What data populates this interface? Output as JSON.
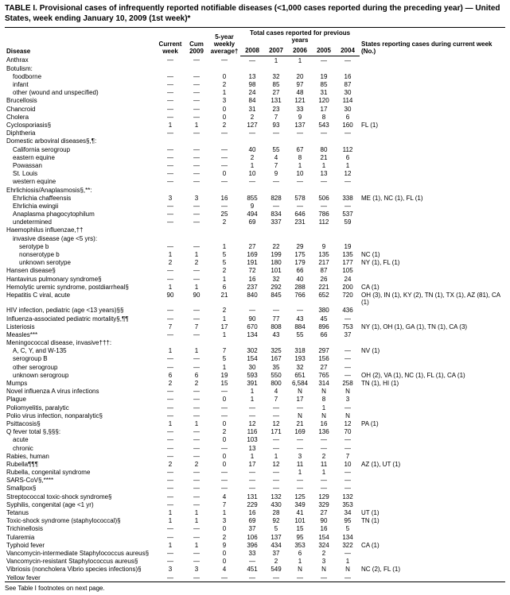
{
  "title": "TABLE I. Provisional cases of infrequently reported notifiable diseases (<1,000 cases reported during the preceding year) — United States, week ending January 10, 2009 (1st week)*",
  "header": {
    "disease": "Disease",
    "current_week": "Current week",
    "cum_2009": "Cum 2009",
    "five_year_avg": "5-year weekly average†",
    "total_cases_label": "Total cases reported for previous years",
    "years": [
      "2008",
      "2007",
      "2006",
      "2005",
      "2004"
    ],
    "states_label": "States reporting cases during current week (No.)"
  },
  "columns_styling": {
    "font_family": "Arial",
    "header_fontsize_pt": 7,
    "body_fontsize_pt": 7,
    "rule_color": "#000000",
    "background": "#ffffff"
  },
  "rows": [
    {
      "d": "Anthrax",
      "i": 0,
      "v": [
        "—",
        "—",
        "—",
        "—",
        "1",
        "1",
        "—",
        "—"
      ],
      "s": ""
    },
    {
      "d": "Botulism:",
      "i": 0,
      "v": [
        "",
        "",
        "",
        "",
        "",
        "",
        "",
        ""
      ],
      "s": ""
    },
    {
      "d": "foodborne",
      "i": 1,
      "v": [
        "—",
        "—",
        "0",
        "13",
        "32",
        "20",
        "19",
        "16"
      ],
      "s": ""
    },
    {
      "d": "infant",
      "i": 1,
      "v": [
        "—",
        "—",
        "2",
        "98",
        "85",
        "97",
        "85",
        "87"
      ],
      "s": ""
    },
    {
      "d": "other (wound and unspecified)",
      "i": 1,
      "v": [
        "—",
        "—",
        "1",
        "24",
        "27",
        "48",
        "31",
        "30"
      ],
      "s": ""
    },
    {
      "d": "Brucellosis",
      "i": 0,
      "v": [
        "—",
        "—",
        "3",
        "84",
        "131",
        "121",
        "120",
        "114"
      ],
      "s": ""
    },
    {
      "d": "Chancroid",
      "i": 0,
      "v": [
        "—",
        "—",
        "0",
        "31",
        "23",
        "33",
        "17",
        "30"
      ],
      "s": ""
    },
    {
      "d": "Cholera",
      "i": 0,
      "v": [
        "—",
        "—",
        "0",
        "2",
        "7",
        "9",
        "8",
        "6"
      ],
      "s": ""
    },
    {
      "d": "Cyclosporiasis§",
      "i": 0,
      "v": [
        "1",
        "1",
        "2",
        "127",
        "93",
        "137",
        "543",
        "160"
      ],
      "s": "FL (1)"
    },
    {
      "d": "Diphtheria",
      "i": 0,
      "v": [
        "—",
        "—",
        "—",
        "—",
        "—",
        "—",
        "—",
        "—"
      ],
      "s": ""
    },
    {
      "d": "Domestic arboviral diseases§,¶:",
      "i": 0,
      "v": [
        "",
        "",
        "",
        "",
        "",
        "",
        "",
        ""
      ],
      "s": ""
    },
    {
      "d": "California serogroup",
      "i": 1,
      "v": [
        "—",
        "—",
        "—",
        "40",
        "55",
        "67",
        "80",
        "112"
      ],
      "s": ""
    },
    {
      "d": "eastern equine",
      "i": 1,
      "v": [
        "—",
        "—",
        "—",
        "2",
        "4",
        "8",
        "21",
        "6"
      ],
      "s": ""
    },
    {
      "d": "Powassan",
      "i": 1,
      "v": [
        "—",
        "—",
        "—",
        "1",
        "7",
        "1",
        "1",
        "1"
      ],
      "s": ""
    },
    {
      "d": "St. Louis",
      "i": 1,
      "v": [
        "—",
        "—",
        "0",
        "10",
        "9",
        "10",
        "13",
        "12"
      ],
      "s": ""
    },
    {
      "d": "western equine",
      "i": 1,
      "v": [
        "—",
        "—",
        "—",
        "—",
        "—",
        "—",
        "—",
        "—"
      ],
      "s": ""
    },
    {
      "d": "Ehrlichiosis/Anaplasmosis§,**:",
      "i": 0,
      "v": [
        "",
        "",
        "",
        "",
        "",
        "",
        "",
        ""
      ],
      "s": ""
    },
    {
      "d": "Ehrlichia chaffeensis",
      "i": 1,
      "v": [
        "3",
        "3",
        "16",
        "855",
        "828",
        "578",
        "506",
        "338"
      ],
      "s": "ME (1), NC (1), FL (1)"
    },
    {
      "d": "Ehrlichia ewingii",
      "i": 1,
      "v": [
        "—",
        "—",
        "—",
        "9",
        "—",
        "—",
        "—",
        "—"
      ],
      "s": ""
    },
    {
      "d": "Anaplasma phagocytophilum",
      "i": 1,
      "v": [
        "—",
        "—",
        "25",
        "494",
        "834",
        "646",
        "786",
        "537"
      ],
      "s": ""
    },
    {
      "d": "undetermined",
      "i": 1,
      "v": [
        "—",
        "—",
        "2",
        "69",
        "337",
        "231",
        "112",
        "59"
      ],
      "s": ""
    },
    {
      "d": "Haemophilus influenzae,††",
      "i": 0,
      "v": [
        "",
        "",
        "",
        "",
        "",
        "",
        "",
        ""
      ],
      "s": ""
    },
    {
      "d": "invasive disease (age <5 yrs):",
      "i": 1,
      "v": [
        "",
        "",
        "",
        "",
        "",
        "",
        "",
        ""
      ],
      "s": ""
    },
    {
      "d": "serotype b",
      "i": 2,
      "v": [
        "—",
        "—",
        "1",
        "27",
        "22",
        "29",
        "9",
        "19"
      ],
      "s": ""
    },
    {
      "d": "nonserotype b",
      "i": 2,
      "v": [
        "1",
        "1",
        "5",
        "169",
        "199",
        "175",
        "135",
        "135"
      ],
      "s": "NC (1)"
    },
    {
      "d": "unknown serotype",
      "i": 2,
      "v": [
        "2",
        "2",
        "5",
        "191",
        "180",
        "179",
        "217",
        "177"
      ],
      "s": "NY (1), FL (1)"
    },
    {
      "d": "Hansen disease§",
      "i": 0,
      "v": [
        "—",
        "—",
        "2",
        "72",
        "101",
        "66",
        "87",
        "105"
      ],
      "s": ""
    },
    {
      "d": "Hantavirus pulmonary syndrome§",
      "i": 0,
      "v": [
        "—",
        "—",
        "1",
        "16",
        "32",
        "40",
        "26",
        "24"
      ],
      "s": ""
    },
    {
      "d": "Hemolytic uremic syndrome, postdiarrheal§",
      "i": 0,
      "v": [
        "1",
        "1",
        "6",
        "237",
        "292",
        "288",
        "221",
        "200"
      ],
      "s": "CA (1)"
    },
    {
      "d": "Hepatitis C viral, acute",
      "i": 0,
      "v": [
        "90",
        "90",
        "21",
        "840",
        "845",
        "766",
        "652",
        "720"
      ],
      "s": "OH (3), IN (1), KY (2), TN (1), TX (1), AZ (81), CA (1)"
    },
    {
      "d": "HIV infection, pediatric (age <13 years)§§",
      "i": 0,
      "v": [
        "—",
        "—",
        "2",
        "—",
        "—",
        "—",
        "380",
        "436"
      ],
      "s": ""
    },
    {
      "d": "Influenza-associated pediatric mortality§,¶¶",
      "i": 0,
      "v": [
        "—",
        "—",
        "1",
        "90",
        "77",
        "43",
        "45",
        "—"
      ],
      "s": ""
    },
    {
      "d": "Listeriosis",
      "i": 0,
      "v": [
        "7",
        "7",
        "17",
        "670",
        "808",
        "884",
        "896",
        "753"
      ],
      "s": "NY (1), OH (1), GA (1), TN (1), CA (3)"
    },
    {
      "d": "Measles***",
      "i": 0,
      "v": [
        "—",
        "—",
        "1",
        "134",
        "43",
        "55",
        "66",
        "37"
      ],
      "s": ""
    },
    {
      "d": "Meningococcal disease, invasive†††:",
      "i": 0,
      "v": [
        "",
        "",
        "",
        "",
        "",
        "",
        "",
        ""
      ],
      "s": ""
    },
    {
      "d": "A, C, Y, and W-135",
      "i": 1,
      "v": [
        "1",
        "1",
        "7",
        "302",
        "325",
        "318",
        "297",
        "—"
      ],
      "s": "NV (1)"
    },
    {
      "d": "serogroup B",
      "i": 1,
      "v": [
        "—",
        "—",
        "5",
        "154",
        "167",
        "193",
        "156",
        "—"
      ],
      "s": ""
    },
    {
      "d": "other serogroup",
      "i": 1,
      "v": [
        "—",
        "—",
        "1",
        "30",
        "35",
        "32",
        "27",
        "—"
      ],
      "s": ""
    },
    {
      "d": "unknown serogroup",
      "i": 1,
      "v": [
        "6",
        "6",
        "19",
        "593",
        "550",
        "651",
        "765",
        "—"
      ],
      "s": "OH (2), VA (1), NC (1), FL (1), CA (1)"
    },
    {
      "d": "Mumps",
      "i": 0,
      "v": [
        "2",
        "2",
        "15",
        "391",
        "800",
        "6,584",
        "314",
        "258"
      ],
      "s": "TN (1), HI (1)"
    },
    {
      "d": "Novel influenza A virus infections",
      "i": 0,
      "v": [
        "—",
        "—",
        "—",
        "1",
        "4",
        "N",
        "N",
        "N"
      ],
      "s": ""
    },
    {
      "d": "Plague",
      "i": 0,
      "v": [
        "—",
        "—",
        "0",
        "1",
        "7",
        "17",
        "8",
        "3"
      ],
      "s": ""
    },
    {
      "d": "Poliomyelitis, paralytic",
      "i": 0,
      "v": [
        "—",
        "—",
        "—",
        "—",
        "—",
        "—",
        "1",
        "—"
      ],
      "s": ""
    },
    {
      "d": "Polio virus infection, nonparalytic§",
      "i": 0,
      "v": [
        "—",
        "—",
        "—",
        "—",
        "—",
        "N",
        "N",
        "N"
      ],
      "s": ""
    },
    {
      "d": "Psittacosis§",
      "i": 0,
      "v": [
        "1",
        "1",
        "0",
        "12",
        "12",
        "21",
        "16",
        "12"
      ],
      "s": "PA (1)"
    },
    {
      "d": "Q fever total §,§§§:",
      "i": 0,
      "v": [
        "—",
        "—",
        "2",
        "116",
        "171",
        "169",
        "136",
        "70"
      ],
      "s": ""
    },
    {
      "d": "acute",
      "i": 1,
      "v": [
        "—",
        "—",
        "0",
        "103",
        "—",
        "—",
        "—",
        "—"
      ],
      "s": ""
    },
    {
      "d": "chronic",
      "i": 1,
      "v": [
        "—",
        "—",
        "—",
        "13",
        "—",
        "—",
        "—",
        "—"
      ],
      "s": ""
    },
    {
      "d": "Rabies, human",
      "i": 0,
      "v": [
        "—",
        "—",
        "0",
        "1",
        "1",
        "3",
        "2",
        "7"
      ],
      "s": ""
    },
    {
      "d": "Rubella¶¶¶",
      "i": 0,
      "v": [
        "2",
        "2",
        "0",
        "17",
        "12",
        "11",
        "11",
        "10"
      ],
      "s": "AZ (1), UT (1)"
    },
    {
      "d": "Rubella, congenital syndrome",
      "i": 0,
      "v": [
        "—",
        "—",
        "—",
        "—",
        "—",
        "1",
        "1",
        "—"
      ],
      "s": ""
    },
    {
      "d": "SARS-CoV§,****",
      "i": 0,
      "v": [
        "—",
        "—",
        "—",
        "—",
        "—",
        "—",
        "—",
        "—"
      ],
      "s": ""
    },
    {
      "d": "Smallpox§",
      "i": 0,
      "v": [
        "—",
        "—",
        "—",
        "—",
        "—",
        "—",
        "—",
        "—"
      ],
      "s": ""
    },
    {
      "d": "Streptococcal toxic-shock syndrome§",
      "i": 0,
      "v": [
        "—",
        "—",
        "4",
        "131",
        "132",
        "125",
        "129",
        "132"
      ],
      "s": ""
    },
    {
      "d": "Syphilis, congenital (age <1 yr)",
      "i": 0,
      "v": [
        "—",
        "—",
        "7",
        "229",
        "430",
        "349",
        "329",
        "353"
      ],
      "s": ""
    },
    {
      "d": "Tetanus",
      "i": 0,
      "v": [
        "1",
        "1",
        "1",
        "16",
        "28",
        "41",
        "27",
        "34"
      ],
      "s": "UT (1)"
    },
    {
      "d": "Toxic-shock syndrome (staphylococcal)§",
      "i": 0,
      "v": [
        "1",
        "1",
        "3",
        "69",
        "92",
        "101",
        "90",
        "95"
      ],
      "s": "TN (1)"
    },
    {
      "d": "Trichinellosis",
      "i": 0,
      "v": [
        "—",
        "—",
        "0",
        "37",
        "5",
        "15",
        "16",
        "5"
      ],
      "s": ""
    },
    {
      "d": "Tularemia",
      "i": 0,
      "v": [
        "—",
        "—",
        "2",
        "106",
        "137",
        "95",
        "154",
        "134"
      ],
      "s": ""
    },
    {
      "d": "Typhoid fever",
      "i": 0,
      "v": [
        "1",
        "1",
        "9",
        "396",
        "434",
        "353",
        "324",
        "322"
      ],
      "s": "CA (1)"
    },
    {
      "d": "Vancomycin-intermediate Staphylococcus aureus§",
      "i": 0,
      "v": [
        "—",
        "—",
        "0",
        "33",
        "37",
        "6",
        "2",
        "—"
      ],
      "s": ""
    },
    {
      "d": "Vancomycin-resistant Staphylococcus aureus§",
      "i": 0,
      "v": [
        "—",
        "—",
        "0",
        "—",
        "2",
        "1",
        "3",
        "1"
      ],
      "s": ""
    },
    {
      "d": "Vibriosis (noncholera Vibrio species infections)§",
      "i": 0,
      "v": [
        "3",
        "3",
        "4",
        "451",
        "549",
        "N",
        "N",
        "N"
      ],
      "s": "NC (2), FL (1)"
    },
    {
      "d": "Yellow fever",
      "i": 0,
      "v": [
        "—",
        "—",
        "—",
        "—",
        "—",
        "—",
        "—",
        "—"
      ],
      "s": ""
    }
  ],
  "footnote": "See Table I footnotes on next page."
}
